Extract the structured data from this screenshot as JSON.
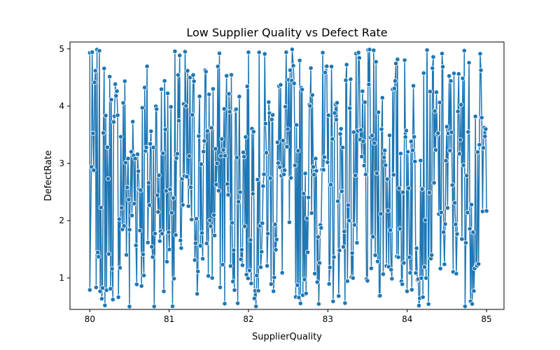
{
  "chart_data": {
    "type": "line",
    "title": "Low Supplier Quality vs Defect Rate",
    "xlabel": "SupplierQuality",
    "ylabel": "DefectRate",
    "xlim": [
      79.75,
      85.22
    ],
    "ylim": [
      0.45,
      5.12
    ],
    "xticks": [
      80,
      81,
      82,
      83,
      84,
      85
    ],
    "yticks": [
      1,
      2,
      3,
      4,
      5
    ],
    "grid": false,
    "legend": "none",
    "series": [
      {
        "color": "#1f77b4",
        "marker": "circle",
        "x_range": [
          80,
          85
        ],
        "point_count": 500,
        "y_range": [
          0.5,
          5.0
        ],
        "sample_points": [
          {
            "x": 80.0,
            "y": 4.93
          },
          {
            "x": 80.0,
            "y": 0.79
          },
          {
            "x": 80.19,
            "y": 0.52
          },
          {
            "x": 80.5,
            "y": 0.5
          },
          {
            "x": 81.2,
            "y": 4.95
          },
          {
            "x": 81.7,
            "y": 0.55
          },
          {
            "x": 82.0,
            "y": 4.94
          },
          {
            "x": 82.55,
            "y": 4.99
          },
          {
            "x": 83.5,
            "y": 0.95
          },
          {
            "x": 84.25,
            "y": 4.98
          },
          {
            "x": 84.72,
            "y": 4.97
          },
          {
            "x": 85.0,
            "y": 4.33
          },
          {
            "x": 85.0,
            "y": 2.17
          }
        ]
      }
    ]
  }
}
